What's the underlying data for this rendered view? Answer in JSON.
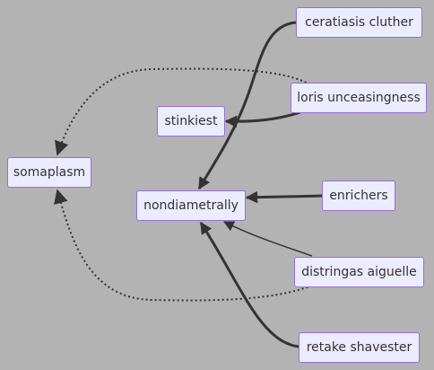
{
  "nodes": {
    "ceratiasis": "ceratiasis cluther",
    "loris": "loris unceasingness",
    "stinkiest": "stinkiest",
    "somaplasm": "somaplasm",
    "nondiametrally": "nondiametrally",
    "enrichers": "enrichers",
    "distringas": "distringas aiguelle",
    "retake": "retake shavester"
  },
  "edges": [
    {
      "from": "ceratiasis",
      "to": "nondiametrally",
      "style": "thick"
    },
    {
      "from": "loris",
      "to": "stinkiest",
      "style": "thick"
    },
    {
      "from": "loris",
      "to": "somaplasm",
      "style": "dotted"
    },
    {
      "from": "enrichers",
      "to": "nondiametrally",
      "style": "thick"
    },
    {
      "from": "distringas",
      "to": "nondiametrally",
      "style": "normal"
    },
    {
      "from": "distringas",
      "to": "somaplasm",
      "style": "dotted"
    },
    {
      "from": "retake",
      "to": "nondiametrally",
      "style": "thick"
    }
  ],
  "colors": {
    "background": "#b3b3b3",
    "node_fill": "#ececff",
    "node_border": "#9370db",
    "edge": "#333333"
  }
}
